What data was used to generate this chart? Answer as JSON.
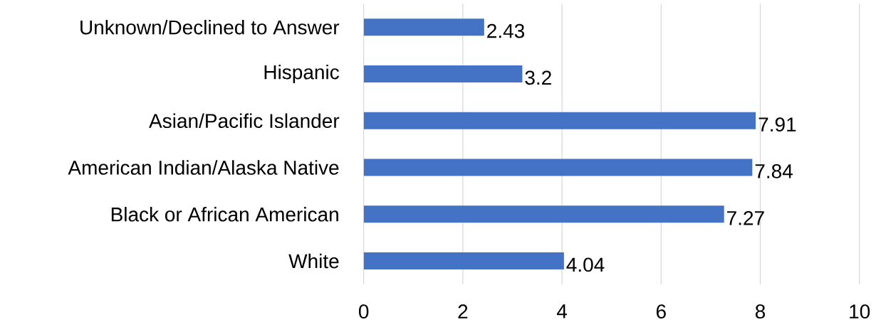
{
  "chart_data": {
    "type": "bar",
    "orientation": "horizontal",
    "categories": [
      "Unknown/Declined to Answer",
      "Hispanic",
      "Asian/Pacific Islander",
      "American Indian/Alaska Native",
      "Black or African American",
      "White"
    ],
    "values": [
      2.43,
      3.2,
      7.91,
      7.84,
      7.27,
      4.04
    ],
    "color": "#4472c4",
    "xlim": [
      0,
      10
    ],
    "xticks": [
      0,
      2,
      4,
      6,
      8,
      10
    ],
    "grid": "x",
    "data_labels": true
  }
}
